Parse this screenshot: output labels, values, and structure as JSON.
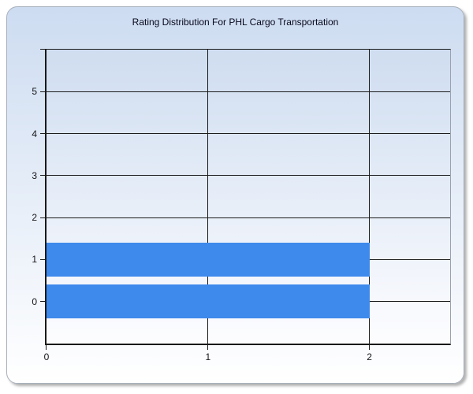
{
  "chart_data": {
    "type": "bar",
    "orientation": "horizontal",
    "title": "Rating Distribution For PHL Cargo Transportation",
    "categories": [
      0,
      1,
      2,
      3,
      4,
      5
    ],
    "values": [
      2,
      2,
      0,
      0,
      0,
      0
    ],
    "xlabel": "",
    "ylabel": "",
    "xlim": [
      0,
      2.5
    ],
    "ylim": [
      -1,
      6
    ],
    "x_ticks": [
      0,
      1,
      2
    ],
    "y_ticks": [
      0,
      1,
      2,
      3,
      4,
      5
    ],
    "bar_thickness": 0.8,
    "grid": true,
    "legend_position": "none",
    "colors": {
      "bar": "#3E89EC",
      "grid": "#1a1a1a",
      "axis": "#1a1a1a",
      "plot_border_right": "#9aa2ae",
      "plot_bg_top": "#cfddf0",
      "plot_bg_bottom": "#fdfdff",
      "panel_bg_top": "#cddcf1",
      "panel_bg_bottom": "#ffffff",
      "panel_border": "#a8b0ba",
      "title_text": "#08081c",
      "tick_text": "#15151a"
    }
  }
}
